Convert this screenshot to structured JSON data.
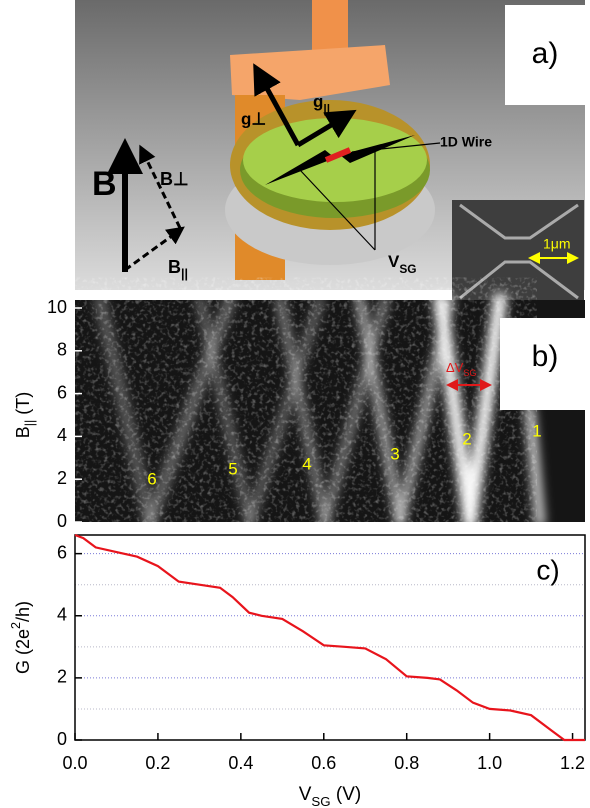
{
  "diagram": {
    "panel_label": "a)",
    "g_perp": "g⊥",
    "g_par": [
      "g",
      "||"
    ],
    "wire_label": "1D Wire",
    "B": "B",
    "B_perp": "B⊥",
    "B_par": [
      "B",
      "||"
    ],
    "vsg": [
      "V",
      "SG"
    ],
    "scale": "1μm"
  },
  "chart_data": [
    {
      "type": "heatmap",
      "panel_label": "b)",
      "y_label": [
        "B",
        "||",
        " (T)"
      ],
      "xlim": [
        0,
        1.23
      ],
      "ylim": [
        0,
        10
      ],
      "yticks": [
        0,
        2,
        4,
        6,
        8,
        10
      ],
      "annotations": [
        "6",
        "5",
        "4",
        "3",
        "2",
        "1"
      ],
      "annotation_color": "#ffff00",
      "delta_label": [
        "ΔV",
        "SG"
      ],
      "delta_color": "#e0191a"
    },
    {
      "type": "line",
      "panel_label": "c)",
      "x_label": [
        "V",
        "SG",
        " (V)"
      ],
      "y_label": [
        "G (2e",
        "2",
        "/h)"
      ],
      "xlim": [
        0,
        1.23
      ],
      "ylim": [
        0,
        6.6
      ],
      "xticks": [
        {
          "value": 0,
          "label": "0.0"
        },
        0.2,
        0.4,
        0.6,
        0.8,
        {
          "value": 1,
          "label": "1.0"
        },
        1.2
      ],
      "yticks": [
        0,
        2,
        4,
        6
      ],
      "grid_lines": [
        1,
        2,
        3,
        4,
        5,
        6
      ],
      "color": "#e8141c",
      "x": [
        0,
        0.02,
        0.05,
        0.1,
        0.15,
        0.2,
        0.25,
        0.3,
        0.35,
        0.38,
        0.42,
        0.45,
        0.5,
        0.55,
        0.6,
        0.65,
        0.7,
        0.75,
        0.8,
        0.85,
        0.88,
        0.92,
        0.96,
        1.0,
        1.05,
        1.1,
        1.15,
        1.18,
        1.23
      ],
      "values": [
        6.6,
        6.5,
        6.2,
        6.05,
        5.9,
        5.6,
        5.1,
        5.0,
        4.9,
        4.6,
        4.1,
        4.0,
        3.9,
        3.5,
        3.05,
        3.0,
        2.95,
        2.6,
        2.05,
        2.0,
        1.95,
        1.6,
        1.2,
        1.0,
        0.95,
        0.8,
        0.3,
        0.0,
        0.0
      ]
    }
  ]
}
